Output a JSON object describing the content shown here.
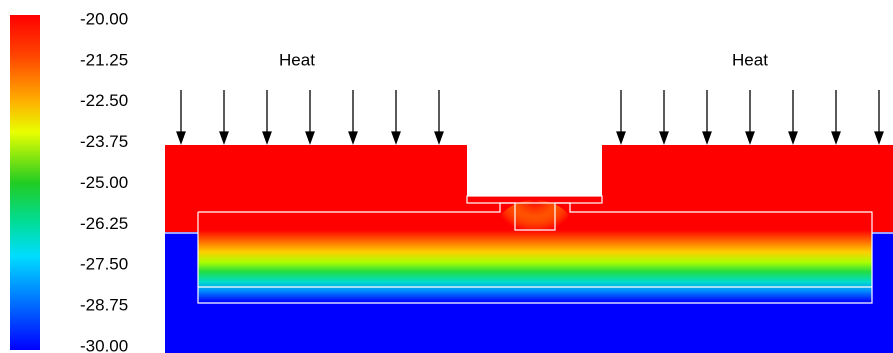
{
  "colorbar": {
    "ticks": [
      "-20.00",
      "-21.25",
      "-22.50",
      "-23.75",
      "-25.00",
      "-26.25",
      "-27.50",
      "-28.75",
      "-30.00"
    ]
  },
  "labels": [
    "Heat",
    "Heat"
  ]
}
